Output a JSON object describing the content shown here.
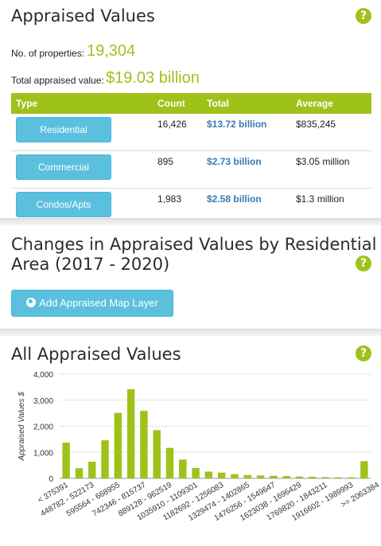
{
  "appraised": {
    "title": "Appraised Values",
    "help": "?",
    "props_label": "No. of properties:",
    "props_value": "19,304",
    "total_label": "Total appraised value:",
    "total_value": "$19.03 billion",
    "columns": [
      "Type",
      "Count",
      "Total",
      "Average"
    ],
    "rows": [
      {
        "type": "Residential",
        "count": "16,426",
        "total": "$13.72 billion",
        "average": "$835,245"
      },
      {
        "type": "Commercial",
        "count": "895",
        "total": "$2.73 billion",
        "average": "$3.05 million"
      },
      {
        "type": "Condos/Apts",
        "count": "1,983",
        "total": "$2.58 billion",
        "average": "$1.3 million"
      }
    ]
  },
  "changes": {
    "title_line1": "Changes in Appraised Values by Residential",
    "title_line2": "Area (2017 - 2020)",
    "help": "?",
    "map_button": "Add Appraised Map Layer",
    "map_icon": "globe-icon"
  },
  "all_values": {
    "title": "All Appraised Values",
    "help": "?"
  },
  "colors": {
    "accent": "#9fc21b",
    "button": "#5bc0de",
    "link": "#3a7bb0"
  },
  "chart_data": {
    "type": "bar",
    "ylabel": "Appraised Values $",
    "ylim": [
      0,
      4000
    ],
    "yticks": [
      "0",
      "1,000",
      "2,000",
      "3,000",
      "4,000"
    ],
    "ytick_values": [
      0,
      1000,
      2000,
      3000,
      4000
    ],
    "xtick_labels": [
      "< 375391",
      "448782 - 522173",
      "595564 - 668955",
      "742346 - 815737",
      "889128 - 962519",
      "1035910 - 1109301",
      "1182692 - 1256083",
      "1329474 - 1402865",
      "1476256 - 1549647",
      "1623038 - 1696429",
      "1769820 - 1843211",
      "1916602 - 1989993",
      ">= 2063384"
    ],
    "values": [
      1370,
      390,
      640,
      1460,
      2510,
      3420,
      2590,
      1850,
      1170,
      720,
      400,
      260,
      220,
      160,
      130,
      110,
      100,
      90,
      70,
      60,
      50,
      40,
      40,
      660
    ]
  }
}
